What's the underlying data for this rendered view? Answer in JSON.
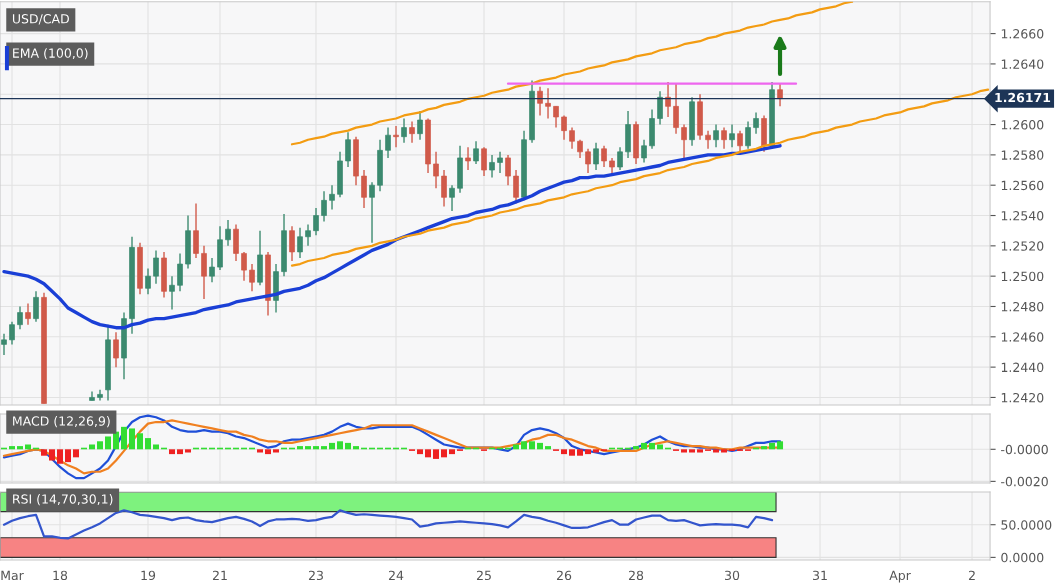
{
  "chart_data": [
    {
      "type": "candlestick",
      "title": "USD/CAD",
      "legend": "top left",
      "grid": true,
      "tick_labels": "y",
      "categories": [
        null,
        null,
        null,
        null,
        null,
        null,
        null,
        null,
        null,
        null,
        null,
        null,
        null,
        null,
        null,
        null,
        null,
        null,
        null,
        null,
        null,
        null,
        null,
        null,
        null,
        null,
        null,
        null,
        null,
        null,
        null,
        null,
        null,
        null,
        null,
        null,
        null,
        null,
        null,
        null,
        null,
        null,
        null,
        null,
        null,
        null,
        null,
        null,
        null,
        null,
        null,
        null,
        null,
        null,
        null,
        null,
        null,
        null,
        null,
        null,
        null,
        null,
        null,
        null,
        null,
        null,
        null,
        null,
        null,
        null,
        null,
        null,
        null,
        null,
        null,
        null,
        null,
        null,
        null,
        null,
        null,
        null,
        null,
        null,
        null,
        null,
        null,
        null,
        null,
        null,
        null,
        null,
        null,
        null,
        null,
        null,
        null,
        null,
        null,
        null,
        null,
        null,
        null,
        null,
        null,
        null,
        null,
        null,
        null,
        null,
        null,
        null,
        null,
        null,
        null,
        null,
        null,
        null,
        null,
        null,
        null,
        null,
        null,
        null
      ],
      "ohlc": [
        [
          1.2455,
          1.2462,
          1.2448,
          1.2458
        ],
        [
          1.2458,
          1.247,
          1.2455,
          1.2468
        ],
        [
          1.2468,
          1.248,
          1.2465,
          1.2476
        ],
        [
          1.2476,
          1.2482,
          1.2468,
          1.2472
        ],
        [
          1.2472,
          1.249,
          1.247,
          1.2486
        ],
        [
          1.2486,
          1.2489,
          1.2416,
          1.2416
        ],
        null,
        null,
        null,
        null,
        null,
        [
          1.2418,
          1.2424,
          1.2418,
          1.242
        ],
        [
          1.242,
          1.2425,
          1.2418,
          1.2422
        ],
        [
          1.2425,
          1.2468,
          1.2418,
          1.2458
        ],
        [
          1.2458,
          1.2463,
          1.244,
          1.2446
        ],
        [
          1.2446,
          1.2476,
          1.2432,
          1.2472
        ],
        [
          1.2472,
          1.2526,
          1.2462,
          1.2519
        ],
        [
          1.2519,
          1.2522,
          1.2488,
          1.2492
        ],
        [
          1.2492,
          1.2505,
          1.2488,
          1.25
        ],
        [
          1.25,
          1.2517,
          1.2495,
          1.2512
        ],
        [
          1.2512,
          1.2516,
          1.2486,
          1.249
        ],
        [
          1.249,
          1.25,
          1.2478,
          1.2494
        ],
        [
          1.2494,
          1.2515,
          1.249,
          1.2508
        ],
        [
          1.2508,
          1.254,
          1.2505,
          1.253
        ],
        [
          1.253,
          1.2548,
          1.2512,
          1.2515
        ],
        [
          1.2515,
          1.252,
          1.2485,
          1.25
        ],
        [
          1.25,
          1.2512,
          1.2496,
          1.2506
        ],
        [
          1.2506,
          1.2533,
          1.2504,
          1.2524
        ],
        [
          1.2524,
          1.2537,
          1.252,
          1.2531
        ],
        [
          1.2531,
          1.2534,
          1.251,
          1.2515
        ],
        [
          1.2515,
          1.2516,
          1.2497,
          1.2504
        ],
        [
          1.2504,
          1.2508,
          1.249,
          1.2496
        ],
        [
          1.2496,
          1.253,
          1.2494,
          1.2514
        ],
        [
          1.2514,
          1.2516,
          1.2474,
          1.2484
        ],
        [
          1.2484,
          1.2508,
          1.2476,
          1.2503
        ],
        [
          1.2503,
          1.2541,
          1.25,
          1.253
        ],
        [
          1.253,
          1.2533,
          1.251,
          1.2516
        ],
        [
          1.2516,
          1.2532,
          1.2512,
          1.2526
        ],
        [
          1.2526,
          1.2534,
          1.252,
          1.253
        ],
        [
          1.253,
          1.2545,
          1.2527,
          1.254
        ],
        [
          1.254,
          1.2556,
          1.2536,
          1.255
        ],
        [
          1.255,
          1.256,
          1.2544,
          1.2554
        ],
        [
          1.2554,
          1.2582,
          1.2552,
          1.2576
        ],
        [
          1.2576,
          1.2595,
          1.2572,
          1.259
        ],
        [
          1.259,
          1.2592,
          1.256,
          1.2566
        ],
        [
          1.2566,
          1.257,
          1.2545,
          1.2552
        ],
        [
          1.2552,
          1.2562,
          1.2522,
          1.256
        ],
        [
          1.256,
          1.259,
          1.2556,
          1.2583
        ],
        [
          1.2583,
          1.2598,
          1.2578,
          1.2593
        ],
        [
          1.2593,
          1.2599,
          1.2585,
          1.2592
        ],
        [
          1.2592,
          1.2604,
          1.2588,
          1.2598
        ],
        [
          1.2598,
          1.2602,
          1.2588,
          1.2594
        ],
        [
          1.2594,
          1.2609,
          1.259,
          1.2603
        ],
        [
          1.2603,
          1.2604,
          1.2568,
          1.2574
        ],
        [
          1.2574,
          1.2582,
          1.2558,
          1.2566
        ],
        [
          1.2566,
          1.257,
          1.2546,
          1.2552
        ],
        [
          1.2552,
          1.256,
          1.2543,
          1.2558
        ],
        [
          1.2558,
          1.2586,
          1.2555,
          1.2578
        ],
        [
          1.2578,
          1.2585,
          1.257,
          1.2576
        ],
        [
          1.2576,
          1.2589,
          1.2574,
          1.2584
        ],
        [
          1.2584,
          1.2585,
          1.2566,
          1.257
        ],
        [
          1.257,
          1.258,
          1.2565,
          1.2575
        ],
        [
          1.2575,
          1.2582,
          1.2568,
          1.2578
        ],
        [
          1.2578,
          1.258,
          1.256,
          1.2566
        ],
        [
          1.2566,
          1.257,
          1.2548,
          1.2552
        ],
        [
          1.2552,
          1.2596,
          1.255,
          1.259
        ],
        [
          1.259,
          1.2629,
          1.2588,
          1.2622
        ],
        [
          1.2622,
          1.2625,
          1.2606,
          1.2614
        ],
        [
          1.2614,
          1.2624,
          1.2604,
          1.2612
        ],
        [
          1.2612,
          1.2612,
          1.2598,
          1.2605
        ],
        [
          1.2605,
          1.2606,
          1.259,
          1.2596
        ],
        [
          1.2596,
          1.2598,
          1.2584,
          1.2589
        ],
        [
          1.2589,
          1.259,
          1.2578,
          1.2582
        ],
        [
          1.2582,
          1.2584,
          1.2568,
          1.2574
        ],
        [
          1.2574,
          1.2588,
          1.257,
          1.2584
        ],
        [
          1.2584,
          1.2586,
          1.2572,
          1.2576
        ],
        [
          1.2576,
          1.2578,
          1.2566,
          1.2572
        ],
        [
          1.2572,
          1.2585,
          1.257,
          1.2582
        ],
        [
          1.2582,
          1.2609,
          1.2578,
          1.26
        ],
        [
          1.26,
          1.2602,
          1.2574,
          1.2578
        ],
        [
          1.2578,
          1.259,
          1.2575,
          1.2586
        ],
        [
          1.2586,
          1.261,
          1.2584,
          1.2604
        ],
        [
          1.2604,
          1.2622,
          1.26,
          1.2618
        ],
        [
          1.2618,
          1.2628,
          1.2605,
          1.2612
        ],
        [
          1.2612,
          1.2627,
          1.2594,
          1.2598
        ],
        [
          1.2598,
          1.26,
          1.2578,
          1.259
        ],
        [
          1.259,
          1.2618,
          1.2586,
          1.2615
        ],
        [
          1.2615,
          1.262,
          1.259,
          1.2593
        ],
        [
          1.2593,
          1.2596,
          1.2584,
          1.259
        ],
        [
          1.259,
          1.26,
          1.2585,
          1.2596
        ],
        [
          1.2596,
          1.2598,
          1.2584,
          1.259
        ],
        [
          1.259,
          1.26,
          1.2585,
          1.2594
        ],
        [
          1.2594,
          1.2596,
          1.2582,
          1.2586
        ],
        [
          1.2586,
          1.2602,
          1.2584,
          1.2598
        ],
        [
          1.2598,
          1.2608,
          1.2594,
          1.2604
        ],
        [
          1.2604,
          1.2606,
          1.2582,
          1.2586
        ],
        [
          1.2586,
          1.2628,
          1.2584,
          1.2623
        ],
        [
          1.2623,
          1.2627,
          1.2612,
          1.26171
        ],
        null,
        null,
        null,
        null,
        null,
        null,
        null,
        null,
        null,
        null,
        null,
        null,
        null,
        null,
        null,
        null,
        null,
        null,
        null,
        null,
        null,
        null,
        null,
        null,
        null,
        null
      ],
      "series": [
        {
          "name": "EMA (100,0)",
          "type": "line",
          "color": "#1a3fd6",
          "values": [
            1.2503,
            1.2502,
            1.2501,
            1.25,
            1.2498,
            1.2495,
            1.249,
            1.2485,
            1.2479,
            1.2476,
            1.2473,
            1.247,
            1.2468,
            1.2467,
            1.2466,
            1.2466,
            1.2468,
            1.2469,
            1.2471,
            1.2472,
            1.2472,
            1.2473,
            1.2474,
            1.2475,
            1.2476,
            1.2478,
            1.2479,
            1.248,
            1.2481,
            1.2483,
            1.2484,
            1.2485,
            1.2486,
            1.2487,
            1.2488,
            1.249,
            1.2491,
            1.2492,
            1.2494,
            1.2497,
            1.2499,
            1.2502,
            1.2505,
            1.2508,
            1.2511,
            1.2514,
            1.2517,
            1.2519,
            1.2521,
            1.2524,
            1.2526,
            1.2528,
            1.253,
            1.2532,
            1.2534,
            1.2536,
            1.2538,
            1.2539,
            1.254,
            1.2542,
            1.2543,
            1.2544,
            1.2546,
            1.2547,
            1.2549,
            1.2551,
            1.2553,
            1.2556,
            1.2558,
            1.256,
            1.2562,
            1.2563,
            1.2565,
            1.2565,
            1.2566,
            1.2566,
            1.2567,
            1.2568,
            1.2569,
            1.257,
            1.2571,
            1.2572,
            1.2573,
            1.2575,
            1.2576,
            1.2577,
            1.2578,
            1.2579,
            1.258,
            1.258,
            1.258,
            1.2581,
            1.2581,
            1.2582,
            1.2583,
            1.2584,
            1.2585,
            1.2586,
            null,
            null,
            null,
            null,
            null,
            null,
            null,
            null,
            null,
            null,
            null,
            null,
            null,
            null,
            null,
            null,
            null,
            null,
            null,
            null,
            null,
            null,
            null,
            null,
            null,
            null
          ]
        },
        {
          "type": "line",
          "color": "#f39c12",
          "values": [
            null,
            null,
            null,
            null,
            null,
            null,
            null,
            null,
            null,
            null,
            null,
            null,
            null,
            null,
            null,
            null,
            null,
            null,
            null,
            null,
            null,
            null,
            null,
            null,
            null,
            null,
            null,
            null,
            null,
            null,
            null,
            null,
            null,
            null,
            null,
            null,
            1.2587,
            1.2588,
            1.259,
            1.2591,
            1.2592,
            1.2594,
            1.2595,
            1.2596,
            1.2598,
            1.2599,
            1.26,
            1.2602,
            1.2603,
            1.2604,
            1.2606,
            1.2607,
            1.2608,
            1.261,
            1.2611,
            1.2613,
            1.2614,
            1.2615,
            1.2617,
            1.2618,
            1.2619,
            1.2621,
            1.2622,
            1.2623,
            1.2625,
            1.2626,
            1.2627,
            1.2629,
            1.263,
            1.2631,
            1.2633,
            1.2634,
            1.2635,
            1.2637,
            1.2638,
            1.2639,
            1.2641,
            1.2642,
            1.2643,
            1.2645,
            1.2646,
            1.2647,
            1.2649,
            1.265,
            1.2651,
            1.2653,
            1.2654,
            1.2655,
            1.2657,
            1.2658,
            1.266,
            1.2661,
            1.2662,
            1.2664,
            1.2665,
            1.2666,
            1.2668,
            1.2669,
            1.267,
            1.2672,
            1.2673,
            1.2674,
            1.2676,
            1.2677,
            1.2678,
            1.268,
            1.2681,
            null,
            null,
            null,
            null,
            null,
            null,
            null,
            null,
            null,
            null,
            null,
            null,
            null,
            null,
            null,
            null,
            null
          ]
        },
        {
          "type": "line",
          "color": "#f39c12",
          "values": [
            null,
            null,
            null,
            null,
            null,
            null,
            null,
            null,
            null,
            null,
            null,
            null,
            null,
            null,
            null,
            null,
            null,
            null,
            null,
            null,
            null,
            null,
            null,
            null,
            null,
            null,
            null,
            null,
            null,
            null,
            null,
            null,
            null,
            null,
            null,
            null,
            1.2507,
            1.2508,
            1.251,
            1.2511,
            1.2512,
            1.2514,
            1.2515,
            1.2516,
            1.2518,
            1.2519,
            1.252,
            1.2522,
            1.2523,
            1.2524,
            1.2526,
            1.2527,
            1.2528,
            1.253,
            1.2531,
            1.2532,
            1.2534,
            1.2535,
            1.2536,
            1.2538,
            1.2539,
            1.254,
            1.2542,
            1.2543,
            1.2544,
            1.2546,
            1.2547,
            1.2548,
            1.255,
            1.2551,
            1.2552,
            1.2554,
            1.2555,
            1.2556,
            1.2558,
            1.2559,
            1.256,
            1.2562,
            1.2563,
            1.2564,
            1.2566,
            1.2567,
            1.2568,
            1.257,
            1.2571,
            1.2572,
            1.2574,
            1.2575,
            1.2576,
            1.2578,
            1.2579,
            1.258,
            1.2582,
            1.2583,
            1.2584,
            1.2586,
            1.2587,
            1.2588,
            1.259,
            1.2591,
            1.2592,
            1.2594,
            1.2595,
            1.2596,
            1.2598,
            1.2599,
            1.26,
            1.2602,
            1.2603,
            1.2604,
            1.2606,
            1.2607,
            1.2608,
            1.261,
            1.2611,
            1.2612,
            1.2614,
            1.2615,
            1.2616,
            1.2618,
            1.2619,
            1.262,
            1.2622,
            1.2623
          ]
        },
        {
          "type": "line",
          "color": "#ee66ee",
          "values": [
            null,
            null,
            null,
            null,
            null,
            null,
            null,
            null,
            null,
            null,
            null,
            null,
            null,
            null,
            null,
            null,
            null,
            null,
            null,
            null,
            null,
            null,
            null,
            null,
            null,
            null,
            null,
            null,
            null,
            null,
            null,
            null,
            null,
            null,
            null,
            null,
            null,
            null,
            null,
            null,
            null,
            null,
            null,
            null,
            null,
            null,
            null,
            null,
            null,
            null,
            null,
            null,
            null,
            null,
            null,
            null,
            null,
            null,
            null,
            null,
            null,
            null,
            null,
            1.2627,
            1.2627,
            1.2627,
            1.2627,
            1.2627,
            1.2627,
            1.2627,
            1.2627,
            1.2627,
            1.2627,
            1.2627,
            1.2627,
            1.2627,
            1.2627,
            1.2627,
            1.2627,
            1.2627,
            1.2627,
            1.2627,
            1.2627,
            1.2627,
            1.2627,
            1.2627,
            1.2627,
            1.2627,
            1.2627,
            1.2627,
            1.2627,
            1.2627,
            1.2627,
            1.2627,
            1.2627,
            1.2627,
            1.2627,
            1.2627,
            1.2627,
            1.2627,
            null,
            null,
            null,
            null,
            null,
            null,
            null,
            null,
            null,
            null,
            null,
            null,
            null,
            null,
            null,
            null,
            null,
            null,
            null,
            null,
            null,
            null,
            null,
            null
          ]
        }
      ],
      "ref_lines": [
        {
          "axis": "y",
          "value": 1.26171,
          "label": "1.26171",
          "color": "#1d3557"
        }
      ],
      "ylim": [
        1.2415,
        1.2681
      ],
      "yticks": [
        {
          "value": 1.242,
          "label": "1.2420"
        },
        {
          "value": 1.244,
          "label": "1.2440"
        },
        {
          "value": 1.246,
          "label": "1.2460"
        },
        {
          "value": 1.248,
          "label": "1.2480"
        },
        {
          "value": 1.25,
          "label": "1.2500"
        },
        {
          "value": 1.252,
          "label": "1.2520"
        },
        {
          "value": 1.254,
          "label": "1.2540"
        },
        {
          "value": 1.256,
          "label": "1.2560"
        },
        {
          "value": 1.258,
          "label": "1.2580"
        },
        {
          "value": 1.26,
          "label": "1.2600"
        },
        {
          "value": 1.262,
          "label": null
        },
        {
          "value": 1.264,
          "label": "1.2640"
        },
        {
          "value": 1.266,
          "label": "1.2660"
        }
      ]
    },
    {
      "type": "bar",
      "title": "MACD (12,26,9)",
      "grid": true,
      "tick_labels": "y",
      "categories": [
        null,
        null,
        null,
        null,
        null,
        null,
        null,
        null,
        null,
        null,
        null,
        null,
        null,
        null,
        null,
        null,
        null,
        null,
        null,
        null,
        null,
        null,
        null,
        null,
        null,
        null,
        null,
        null,
        null,
        null,
        null,
        null,
        null,
        null,
        null,
        null,
        null,
        null,
        null,
        null,
        null,
        null,
        null,
        null,
        null,
        null,
        null,
        null,
        null,
        null,
        null,
        null,
        null,
        null,
        null,
        null,
        null,
        null,
        null,
        null,
        null,
        null,
        null,
        null,
        null,
        null,
        null,
        null,
        null,
        null,
        null,
        null,
        null,
        null,
        null,
        null,
        null,
        null,
        null,
        null,
        null,
        null,
        null,
        null,
        null,
        null,
        null,
        null,
        null,
        null,
        null,
        null,
        null,
        null,
        null,
        null,
        null,
        null,
        null,
        null,
        null,
        null,
        null,
        null,
        null,
        null,
        null,
        null,
        null,
        null,
        null,
        null,
        null,
        null,
        null,
        null,
        null,
        null,
        null,
        null,
        null,
        null,
        null,
        null
      ],
      "series": [
        {
          "type": "bar",
          "colors": [
            "#33dd33",
            "#33dd33",
            "#33dd33",
            "#33dd33",
            "#33dd33",
            "#ee2222",
            "#ee2222",
            "#ee2222",
            "#ee2222",
            "#ee2222",
            "#33dd33",
            "#33dd33",
            "#33dd33",
            "#33dd33",
            "#33dd33",
            "#33dd33",
            "#33dd33",
            "#33dd33",
            "#33dd33",
            "#33dd33",
            "#33dd33",
            "#ee2222",
            "#ee2222",
            "#ee2222",
            "#33dd33",
            "#33dd33",
            "#33dd33",
            "#33dd33",
            "#33dd33",
            "#33dd33",
            "#33dd33",
            "#33dd33",
            "#ee2222",
            "#ee2222",
            "#ee2222",
            "#33dd33",
            "#33dd33",
            "#33dd33",
            "#33dd33",
            "#33dd33",
            "#33dd33",
            "#33dd33",
            "#33dd33",
            "#33dd33",
            "#33dd33",
            "#33dd33",
            "#33dd33",
            "#33dd33",
            "#33dd33",
            "#33dd33",
            "#33dd33",
            "#ee2222",
            "#ee2222",
            "#ee2222",
            "#ee2222",
            "#ee2222",
            "#ee2222",
            "#ee2222",
            "#33dd33",
            "#33dd33",
            "#ee2222",
            "#33dd33",
            "#33dd33",
            "#33dd33",
            "#33dd33",
            "#33dd33",
            "#33dd33",
            "#33dd33",
            "#33dd33",
            "#ee2222",
            "#ee2222",
            "#ee2222",
            "#ee2222",
            "#ee2222",
            "#ee2222",
            "#ee2222",
            "#33dd33",
            "#33dd33",
            "#33dd33",
            "#33dd33",
            "#33dd33",
            "#33dd33",
            "#33dd33",
            "#33dd33",
            "#ee2222",
            "#ee2222",
            "#ee2222",
            "#ee2222",
            "#ee2222",
            "#ee2222",
            "#ee2222",
            "#ee2222",
            "#ee2222",
            "#ee2222",
            "#33dd33",
            "#33dd33",
            "#33dd33",
            "#33dd33",
            null,
            null,
            null,
            null,
            null,
            null,
            null,
            null,
            null,
            null,
            null,
            null,
            null,
            null,
            null,
            null,
            null,
            null,
            null,
            null,
            null,
            null,
            null,
            null,
            null,
            null
          ],
          "values": [
            0.0001,
            0.0002,
            0.0002,
            0.0003,
            0.0001,
            -0.0004,
            -0.0007,
            -0.0009,
            -0.0008,
            -0.0005,
            0.0001,
            0.0003,
            0.0005,
            0.0008,
            0.0011,
            0.0014,
            0.0013,
            0.001,
            0.0007,
            0.0003,
            0.0001,
            -0.0003,
            -0.0003,
            -0.0002,
            0.0001,
            0.0001,
            0.0001,
            0.0001,
            0.0001,
            0.0001,
            0.0001,
            0.0001,
            -0.0002,
            -0.0003,
            -0.0002,
            0.0001,
            0.0001,
            0.0002,
            0.0002,
            0.0002,
            0.0002,
            0.0004,
            0.0005,
            0.0004,
            0.0002,
            0.0001,
            0.0001,
            0.0001,
            0.0001,
            0.0001,
            0.0001,
            -0.0001,
            -0.0003,
            -0.0005,
            -0.0006,
            -0.0005,
            -0.0003,
            -0.0001,
            0.0001,
            0.0001,
            -0.0001,
            0.0001,
            0.0001,
            0.0001,
            0.0003,
            0.0005,
            0.0005,
            0.0004,
            0.0002,
            -0.0001,
            -0.0003,
            -0.0004,
            -0.0004,
            -0.0003,
            -0.0002,
            -0.0001,
            0.0001,
            0.0001,
            0.0001,
            0.0002,
            0.0004,
            0.0004,
            0.0003,
            0.0001,
            -0.0001,
            -0.0002,
            -0.0002,
            -0.0002,
            -0.0001,
            -0.0002,
            -0.0002,
            -0.0001,
            -0.0001,
            -0.0001,
            0.0001,
            0.0002,
            0.0004,
            0.0005,
            null,
            null,
            null,
            null,
            null,
            null,
            null,
            null,
            null,
            null,
            null,
            null,
            null,
            null,
            null,
            null,
            null,
            null,
            null,
            null,
            null,
            null,
            null,
            null,
            null,
            null
          ]
        },
        {
          "type": "line",
          "color": "#1f4fd8",
          "values": [
            -0.0005,
            -0.0004,
            -0.0003,
            -0.0001,
            0.0,
            -0.0001,
            -0.0006,
            -0.0011,
            -0.0015,
            -0.0018,
            -0.0018,
            -0.0015,
            -0.0012,
            -0.0007,
            0.0002,
            0.0011,
            0.0017,
            0.002,
            0.0021,
            0.002,
            0.0018,
            0.0014,
            0.0012,
            0.0011,
            0.0011,
            0.0012,
            0.0011,
            0.0011,
            0.001,
            0.0008,
            0.0007,
            0.0005,
            0.0003,
            0.0001,
            0.0002,
            0.0005,
            0.0006,
            0.0006,
            0.0007,
            0.0008,
            0.0009,
            0.0011,
            0.0014,
            0.0016,
            0.0014,
            0.0013,
            0.0013,
            0.0014,
            0.0014,
            0.0014,
            0.0014,
            0.0014,
            0.0012,
            0.0009,
            0.0006,
            0.0003,
            0.0002,
            0.0001,
            0.0001,
            0.0001,
            0.0001,
            0.0001,
            0.0,
            -0.0001,
            0.0002,
            0.0009,
            0.0012,
            0.0013,
            0.0012,
            0.001,
            0.0007,
            0.0002,
            0.0,
            -0.0001,
            -0.0002,
            -0.0003,
            -0.0002,
            -0.0001,
            0.0,
            0.0001,
            0.0003,
            0.0006,
            0.0008,
            0.0005,
            0.0003,
            0.0002,
            0.0002,
            0.0001,
            0.0001,
            0.0,
            0.0,
            -0.0001,
            0.0,
            0.0002,
            0.0004,
            0.0004,
            0.0005,
            0.0005,
            null,
            null,
            null,
            null,
            null,
            null,
            null,
            null,
            null,
            null,
            null,
            null,
            null,
            null,
            null,
            null,
            null,
            null,
            null,
            null,
            null,
            null,
            null,
            null,
            null,
            null
          ]
        },
        {
          "type": "line",
          "color": "#f08020",
          "values": [
            -0.0004,
            -0.0003,
            -0.0002,
            -0.0001,
            0.0,
            -0.0001,
            -0.0004,
            -0.0007,
            -0.001,
            -0.0012,
            -0.0015,
            -0.0014,
            -0.0014,
            -0.0012,
            -0.0007,
            -0.0001,
            0.0005,
            0.0011,
            0.0016,
            0.0017,
            0.0017,
            0.0018,
            0.0017,
            0.0016,
            0.0015,
            0.0014,
            0.0013,
            0.0012,
            0.0011,
            0.0011,
            0.0009,
            0.0008,
            0.0006,
            0.0005,
            0.0005,
            0.0004,
            0.0004,
            0.0005,
            0.0006,
            0.0007,
            0.0008,
            0.0009,
            0.001,
            0.0011,
            0.0012,
            0.0013,
            0.0015,
            0.0015,
            0.0015,
            0.0015,
            0.0015,
            0.0015,
            0.0013,
            0.0011,
            0.0009,
            0.0007,
            0.0005,
            0.0003,
            0.0001,
            0.0001,
            0.0001,
            0.0001,
            0.0001,
            0.0002,
            0.0003,
            0.0004,
            0.0006,
            0.0007,
            0.0009,
            0.0009,
            0.0007,
            0.0006,
            0.0004,
            0.0002,
            0.0001,
            -0.0001,
            -0.0001,
            -0.0001,
            -0.0001,
            -0.0001,
            0.0001,
            0.0003,
            0.0004,
            0.0005,
            0.0004,
            0.0003,
            0.0002,
            0.0002,
            0.0001,
            0.0001,
            0.0,
            0.0,
            0.0001,
            0.0001,
            0.0001,
            0.0001,
            0.0001,
            0.0001,
            null,
            null,
            null,
            null,
            null,
            null,
            null,
            null,
            null,
            null,
            null,
            null,
            null,
            null,
            null,
            null,
            null,
            null,
            null,
            null,
            null,
            null,
            null,
            null,
            null,
            null
          ]
        }
      ],
      "ylim": [
        -0.0021,
        0.0022
      ],
      "yticks": [
        {
          "value": 0,
          "label": "-0.0000"
        },
        {
          "value": -0.002,
          "label": "-0.0020"
        }
      ]
    },
    {
      "type": "line",
      "title": "RSI (14,70,30,1)",
      "grid": true,
      "categories": [
        null,
        "Mar",
        null,
        null,
        null,
        null,
        null,
        "18",
        null,
        null,
        null,
        null,
        null,
        null,
        null,
        null,
        null,
        null,
        "19",
        null,
        null,
        null,
        null,
        null,
        null,
        null,
        null,
        "21",
        null,
        null,
        null,
        null,
        null,
        null,
        null,
        null,
        null,
        null,
        null,
        "23",
        null,
        null,
        null,
        null,
        null,
        null,
        null,
        null,
        null,
        "24",
        null,
        null,
        null,
        null,
        null,
        null,
        null,
        null,
        null,
        null,
        "25",
        null,
        null,
        null,
        null,
        null,
        null,
        null,
        null,
        null,
        "26",
        null,
        null,
        null,
        null,
        null,
        null,
        null,
        null,
        "28",
        null,
        null,
        null,
        null,
        null,
        null,
        null,
        null,
        null,
        null,
        null,
        "30",
        null,
        null,
        null,
        null,
        null,
        null,
        null,
        null,
        null,
        null,
        "31",
        null,
        null,
        null,
        null,
        null,
        null,
        null,
        null,
        null,
        "Apr",
        null,
        null,
        null,
        null,
        null,
        null,
        null,
        null,
        "2",
        null,
        null
      ],
      "series": [
        {
          "type": "line",
          "color": "#3355cc",
          "values": [
            50,
            56,
            60,
            63,
            65,
            32,
            32,
            30,
            29,
            35,
            41,
            46,
            52,
            60,
            68,
            72,
            69,
            65,
            64,
            62,
            60,
            57,
            60,
            61,
            57,
            55,
            54,
            57,
            60,
            62,
            59,
            55,
            48,
            55,
            58,
            58,
            59,
            58,
            56,
            57,
            60,
            62,
            72,
            68,
            65,
            66,
            65,
            64,
            63,
            62,
            60,
            58,
            47,
            49,
            52,
            53,
            54,
            55,
            54,
            53,
            52,
            51,
            49,
            46,
            55,
            65,
            62,
            60,
            56,
            53,
            49,
            45,
            45,
            46,
            50,
            54,
            57,
            50,
            50,
            58,
            61,
            64,
            64,
            57,
            56,
            57,
            53,
            49,
            50,
            51,
            50,
            50,
            49,
            46,
            62,
            60,
            57,
            null,
            null,
            null,
            null,
            null,
            null,
            null,
            null,
            null,
            null,
            null,
            null,
            null,
            null,
            null,
            null,
            null,
            null,
            null,
            null,
            null,
            null,
            null,
            null,
            null,
            null,
            null
          ]
        }
      ],
      "bands": [
        {
          "axis": "y",
          "from": 70,
          "to": 100,
          "color": "#7ef27e"
        },
        {
          "axis": "y",
          "from": 0,
          "to": 30,
          "color": "#f78383"
        }
      ],
      "ylim": [
        -4,
        100
      ],
      "yticks": [
        {
          "value": 50,
          "label": "50.0000"
        },
        {
          "value": 0,
          "label": "0.0000"
        }
      ]
    }
  ]
}
